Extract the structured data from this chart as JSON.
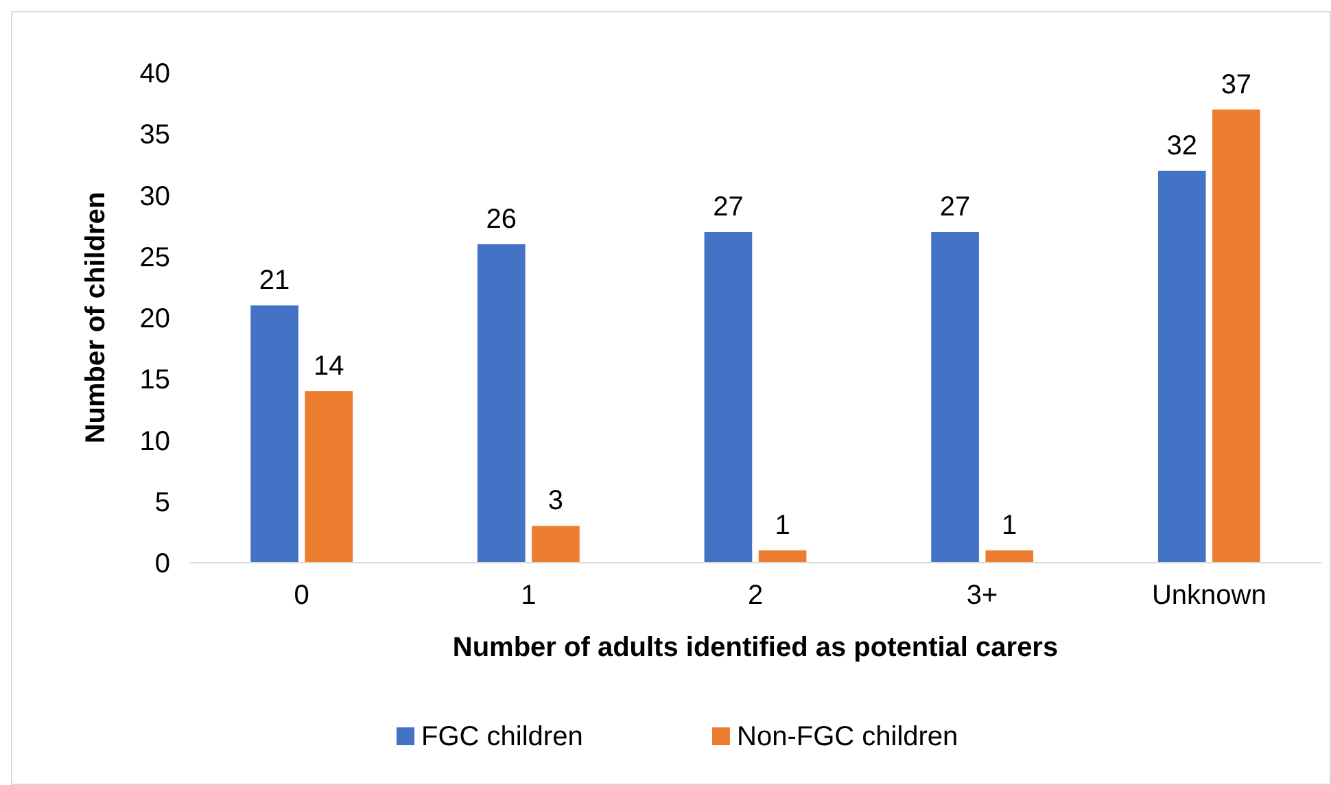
{
  "chart_data": {
    "type": "bar",
    "xlabel": "Number of adults identified as potential carers",
    "ylabel": "Number of children",
    "categories": [
      "0",
      "1",
      "2",
      "3+",
      "Unknown"
    ],
    "series": [
      {
        "name": "FGC children",
        "color": "#4472c4",
        "values": [
          21,
          26,
          27,
          27,
          32
        ]
      },
      {
        "name": "Non-FGC children",
        "color": "#ed7d31",
        "values": [
          14,
          3,
          1,
          1,
          37
        ]
      }
    ],
    "ylim": [
      0,
      40
    ],
    "yticks": [
      0,
      5,
      10,
      15,
      20,
      25,
      30,
      35,
      40
    ],
    "data_labels": true,
    "legend": "bottom"
  }
}
